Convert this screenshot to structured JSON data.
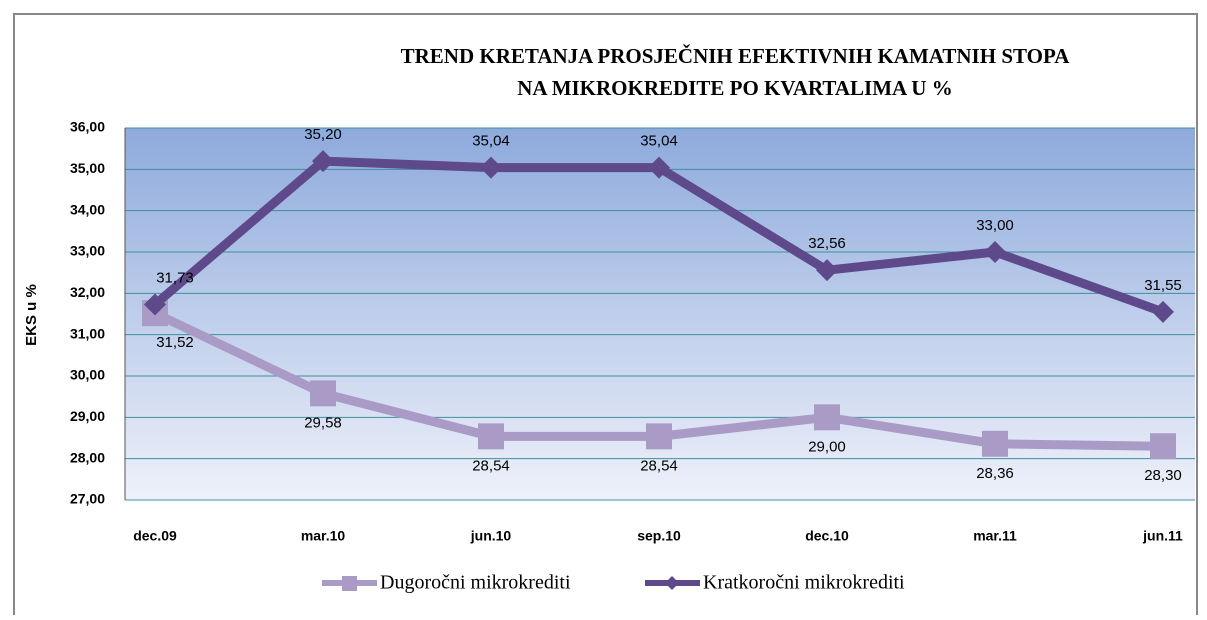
{
  "chart_data": {
    "type": "line",
    "title": [
      "TREND KRETANJA PROSJEČNIH EFEKTIVNIH KAMATNIH STOPA",
      "NA MIKROKREDITE PO KVARTALIMA U %"
    ],
    "y_label": "EKS u %",
    "categories": [
      "dec.09",
      "mar.10",
      "jun.10",
      "sep.10",
      "dec.10",
      "mar.11",
      "jun.11"
    ],
    "series": [
      {
        "name": "Dugoročni mikrokrediti",
        "color": "#a99bc6",
        "marker": "square",
        "values": [
          31.52,
          29.58,
          28.54,
          28.54,
          29.0,
          28.36,
          28.3
        ],
        "value_labels": [
          "31,52",
          "29,58",
          "28,54",
          "28,54",
          "29,00",
          "28,36",
          "28,30"
        ]
      },
      {
        "name": "Kratkoročni mikrokrediti",
        "color": "#5e4a8a",
        "marker": "diamond",
        "values": [
          31.73,
          35.2,
          35.04,
          35.04,
          32.56,
          33.0,
          31.55
        ],
        "value_labels": [
          "31,73",
          "35,20",
          "35,04",
          "35,04",
          "32,56",
          "33,00",
          "31,55"
        ]
      }
    ],
    "ylim": [
      27,
      36
    ],
    "yticks": [
      {
        "value": 27,
        "label": "27,00"
      },
      {
        "value": 28,
        "label": "28,00"
      },
      {
        "value": 29,
        "label": "29,00"
      },
      {
        "value": 30,
        "label": "30,00"
      },
      {
        "value": 31,
        "label": "31,00"
      },
      {
        "value": 32,
        "label": "32,00"
      },
      {
        "value": 33,
        "label": "33,00"
      },
      {
        "value": 34,
        "label": "34,00"
      },
      {
        "value": 35,
        "label": "35,00"
      },
      {
        "value": 36,
        "label": "36,00"
      }
    ],
    "grid": true,
    "legend": "bottom"
  }
}
